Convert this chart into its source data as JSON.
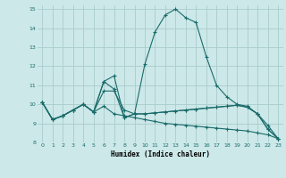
{
  "xlabel": "Humidex (Indice chaleur)",
  "background_color": "#cce8e8",
  "grid_color": "#aacccc",
  "line_color": "#1a6b6b",
  "xlim": [
    -0.5,
    23.5
  ],
  "ylim": [
    8,
    15.2
  ],
  "yticks": [
    8,
    9,
    10,
    11,
    12,
    13,
    14,
    15
  ],
  "xticks": [
    0,
    1,
    2,
    3,
    4,
    5,
    6,
    7,
    8,
    9,
    10,
    11,
    12,
    13,
    14,
    15,
    16,
    17,
    18,
    19,
    20,
    21,
    22,
    23
  ],
  "series": [
    {
      "x": [
        0,
        1,
        2,
        3,
        4,
        5,
        6,
        7,
        8,
        9,
        10,
        11,
        12,
        13,
        14,
        15,
        16,
        17,
        18,
        19,
        20,
        21,
        22,
        23
      ],
      "y": [
        10.1,
        9.2,
        9.4,
        9.7,
        10.0,
        9.6,
        11.2,
        11.5,
        9.3,
        9.5,
        12.1,
        13.8,
        14.7,
        15.0,
        14.55,
        14.3,
        12.5,
        11.0,
        10.4,
        10.0,
        9.9,
        9.5,
        8.9,
        8.2
      ]
    },
    {
      "x": [
        0,
        1,
        2,
        3,
        4,
        5,
        6,
        7,
        8,
        9,
        10,
        11,
        12,
        13,
        14,
        15,
        16,
        17,
        18,
        19,
        20,
        21,
        22,
        23
      ],
      "y": [
        10.1,
        9.2,
        9.4,
        9.7,
        10.0,
        9.6,
        11.2,
        10.8,
        9.3,
        9.5,
        9.5,
        9.55,
        9.6,
        9.65,
        9.7,
        9.75,
        9.8,
        9.85,
        9.9,
        9.95,
        9.85,
        9.5,
        8.7,
        8.2
      ]
    },
    {
      "x": [
        0,
        1,
        2,
        3,
        4,
        5,
        6,
        7,
        8,
        9,
        10,
        11,
        12,
        13,
        14,
        15,
        16,
        17,
        18,
        19,
        20,
        21,
        22,
        23
      ],
      "y": [
        10.1,
        9.2,
        9.4,
        9.7,
        10.0,
        9.6,
        10.7,
        10.7,
        9.7,
        9.5,
        9.5,
        9.55,
        9.6,
        9.65,
        9.7,
        9.75,
        9.8,
        9.85,
        9.9,
        9.95,
        9.85,
        9.5,
        8.7,
        8.2
      ]
    },
    {
      "x": [
        0,
        1,
        2,
        3,
        4,
        5,
        6,
        7,
        8,
        9,
        10,
        11,
        12,
        13,
        14,
        15,
        16,
        17,
        18,
        19,
        20,
        21,
        22,
        23
      ],
      "y": [
        10.1,
        9.2,
        9.4,
        9.7,
        10.0,
        9.6,
        9.9,
        9.5,
        9.4,
        9.3,
        9.2,
        9.1,
        9.0,
        8.95,
        8.9,
        8.85,
        8.8,
        8.75,
        8.7,
        8.65,
        8.6,
        8.5,
        8.4,
        8.2
      ]
    }
  ]
}
